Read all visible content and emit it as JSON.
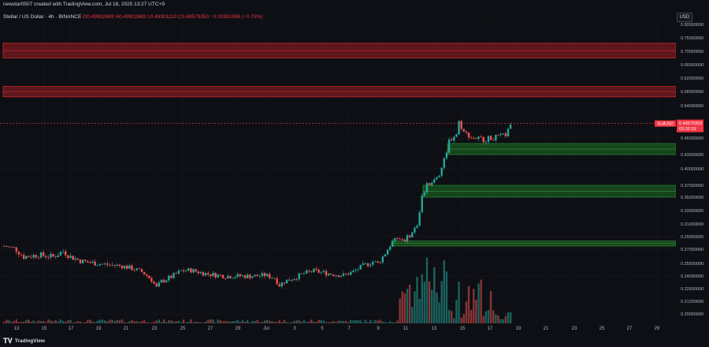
{
  "credit": "newstar0507 created with TradingView.com, Jul 18, 2025 13:27 UTC+9",
  "legend": {
    "symbol": "Stellar / US Dollar · 4h · BINANCE",
    "open": "O0.49902683",
    "high": "H0.49902683",
    "low": "L0.49301110",
    "close": "C0.49579353",
    "change": "−0.00351588 (−0.70%)"
  },
  "currency": "USD",
  "price_tag": {
    "symbol": "XLMUSD",
    "price": "0.49579353",
    "countdown": "03:32:19"
  },
  "brand": "TradingView",
  "colors": {
    "background": "#0d0f14",
    "up": "#26a69a",
    "down": "#ef5350",
    "resistance_zone": "#7a1a1e",
    "support_zone": "#1b5e20",
    "price_line": "#f23645"
  },
  "chart_data": {
    "type": "candlestick",
    "timeframe": "4h",
    "y_axis_labels": [
      "0.80000000",
      "0.75000000",
      "0.70000000",
      "0.66000000",
      "0.62000000",
      "0.58000000",
      "0.54000000",
      "0.46000000",
      "0.43000000",
      "0.40000000",
      "0.37000000",
      "0.35000000",
      "0.33000000",
      "0.31000000",
      "0.29000000",
      "0.27000000",
      "0.25500000",
      "0.24000000",
      "0.22600000",
      "0.21200000",
      "0.20000000"
    ],
    "y_axis_values": [
      0.8,
      0.75,
      0.7,
      0.66,
      0.62,
      0.58,
      0.54,
      0.46,
      0.43,
      0.4,
      0.37,
      0.35,
      0.33,
      0.31,
      0.29,
      0.27,
      0.255,
      0.24,
      0.226,
      0.212,
      0.2
    ],
    "x_axis_labels": [
      "13",
      "15",
      "17",
      "19",
      "21",
      "23",
      "25",
      "27",
      "29",
      "Jul",
      "3",
      "5",
      "7",
      "9",
      "11",
      "13",
      "15",
      "17",
      "19",
      "21",
      "23",
      "25",
      "27",
      "29"
    ],
    "price_path": [
      [
        0,
        0.275
      ],
      [
        4,
        0.272
      ],
      [
        8,
        0.262
      ],
      [
        14,
        0.264
      ],
      [
        20,
        0.262
      ],
      [
        24,
        0.268
      ],
      [
        27,
        0.262
      ],
      [
        32,
        0.257
      ],
      [
        40,
        0.254
      ],
      [
        48,
        0.252
      ],
      [
        52,
        0.249
      ],
      [
        56,
        0.245
      ],
      [
        60,
        0.236
      ],
      [
        62,
        0.227
      ],
      [
        64,
        0.234
      ],
      [
        68,
        0.239
      ],
      [
        72,
        0.246
      ],
      [
        76,
        0.247
      ],
      [
        80,
        0.244
      ],
      [
        84,
        0.242
      ],
      [
        90,
        0.24
      ],
      [
        96,
        0.24
      ],
      [
        102,
        0.24
      ],
      [
        106,
        0.241
      ],
      [
        110,
        0.238
      ],
      [
        112,
        0.23
      ],
      [
        114,
        0.234
      ],
      [
        118,
        0.238
      ],
      [
        122,
        0.243
      ],
      [
        126,
        0.246
      ],
      [
        130,
        0.244
      ],
      [
        134,
        0.242
      ],
      [
        138,
        0.241
      ],
      [
        142,
        0.245
      ],
      [
        146,
        0.252
      ],
      [
        150,
        0.257
      ],
      [
        152,
        0.255
      ],
      [
        154,
        0.262
      ],
      [
        156,
        0.27
      ],
      [
        158,
        0.282
      ],
      [
        160,
        0.287
      ],
      [
        163,
        0.285
      ],
      [
        166,
        0.296
      ],
      [
        168,
        0.31
      ],
      [
        170,
        0.35
      ],
      [
        172,
        0.37
      ],
      [
        175,
        0.38
      ],
      [
        177,
        0.39
      ],
      [
        179,
        0.42
      ],
      [
        181,
        0.455
      ],
      [
        184,
        0.47
      ],
      [
        185,
        0.5
      ],
      [
        187,
        0.475
      ],
      [
        190,
        0.462
      ],
      [
        195,
        0.458
      ],
      [
        200,
        0.462
      ],
      [
        204,
        0.468
      ],
      [
        206,
        0.488
      ],
      [
        207,
        0.496
      ]
    ],
    "resistance_zones": [
      [
        0.68,
        0.73
      ],
      [
        0.565,
        0.595
      ]
    ],
    "support_zones": [
      [
        0.43,
        0.45
      ],
      [
        0.35,
        0.37
      ],
      [
        0.275,
        0.283
      ]
    ],
    "current_price": 0.49579353
  }
}
